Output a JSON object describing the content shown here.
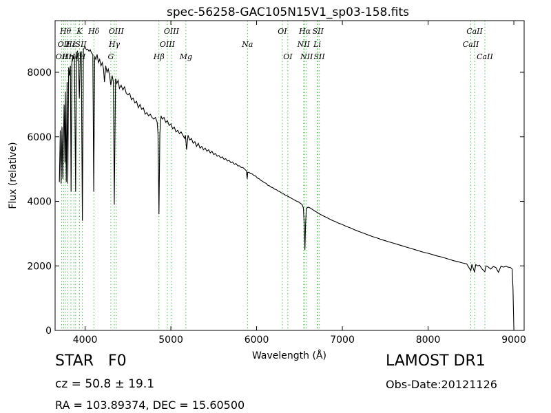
{
  "chart_data": {
    "type": "line",
    "title": "spec-56258-GAC105N15V1_sp03-158.fits",
    "xlabel": "Wavelength (Å)",
    "ylabel": "Flux (relative)",
    "xlim": [
      3650,
      9120
    ],
    "ylim": [
      0,
      9600
    ],
    "xticks": [
      4000,
      5000,
      6000,
      7000,
      8000,
      9000
    ],
    "yticks": [
      0,
      2000,
      4000,
      6000,
      8000
    ],
    "grid": false,
    "series": [
      {
        "color": "#000000",
        "points": [
          [
            3700,
            4600
          ],
          [
            3710,
            6200
          ],
          [
            3720,
            4550
          ],
          [
            3730,
            6300
          ],
          [
            3740,
            4700
          ],
          [
            3755,
            7000
          ],
          [
            3765,
            5200
          ],
          [
            3770,
            7400
          ],
          [
            3780,
            4600
          ],
          [
            3790,
            7700
          ],
          [
            3798,
            4550
          ],
          [
            3808,
            8150
          ],
          [
            3818,
            7900
          ],
          [
            3828,
            8200
          ],
          [
            3836,
            4300
          ],
          [
            3846,
            8300
          ],
          [
            3856,
            8400
          ],
          [
            3866,
            8500
          ],
          [
            3876,
            8450
          ],
          [
            3889,
            4300
          ],
          [
            3900,
            8600
          ],
          [
            3910,
            8650
          ],
          [
            3920,
            8550
          ],
          [
            3933,
            7200
          ],
          [
            3945,
            8600
          ],
          [
            3955,
            8650
          ],
          [
            3968,
            3400
          ],
          [
            3980,
            8700
          ],
          [
            3990,
            8750
          ],
          [
            4000,
            8780
          ],
          [
            4015,
            8700
          ],
          [
            4030,
            8720
          ],
          [
            4045,
            8650
          ],
          [
            4060,
            8700
          ],
          [
            4075,
            8600
          ],
          [
            4090,
            8550
          ],
          [
            4101,
            4300
          ],
          [
            4112,
            8500
          ],
          [
            4125,
            8400
          ],
          [
            4140,
            8550
          ],
          [
            4155,
            8300
          ],
          [
            4170,
            8400
          ],
          [
            4185,
            8200
          ],
          [
            4200,
            8300
          ],
          [
            4215,
            8100
          ],
          [
            4226,
            7700
          ],
          [
            4240,
            8200
          ],
          [
            4255,
            8000
          ],
          [
            4270,
            8100
          ],
          [
            4285,
            7900
          ],
          [
            4300,
            7600
          ],
          [
            4315,
            7900
          ],
          [
            4330,
            7700
          ],
          [
            4340,
            3900
          ],
          [
            4355,
            7800
          ],
          [
            4370,
            7650
          ],
          [
            4385,
            7750
          ],
          [
            4400,
            7500
          ],
          [
            4420,
            7600
          ],
          [
            4440,
            7450
          ],
          [
            4460,
            7550
          ],
          [
            4480,
            7350
          ],
          [
            4500,
            7300
          ],
          [
            4520,
            7350
          ],
          [
            4540,
            7150
          ],
          [
            4560,
            7200
          ],
          [
            4580,
            7050
          ],
          [
            4600,
            7100
          ],
          [
            4620,
            6900
          ],
          [
            4640,
            7000
          ],
          [
            4660,
            6850
          ],
          [
            4680,
            6900
          ],
          [
            4700,
            6700
          ],
          [
            4720,
            6750
          ],
          [
            4740,
            6650
          ],
          [
            4760,
            6700
          ],
          [
            4780,
            6600
          ],
          [
            4800,
            6550
          ],
          [
            4820,
            6600
          ],
          [
            4840,
            6450
          ],
          [
            4850,
            6100
          ],
          [
            4861,
            3600
          ],
          [
            4872,
            6100
          ],
          [
            4885,
            6650
          ],
          [
            4900,
            6550
          ],
          [
            4920,
            6600
          ],
          [
            4940,
            6450
          ],
          [
            4960,
            6500
          ],
          [
            4980,
            6350
          ],
          [
            5000,
            6400
          ],
          [
            5020,
            6250
          ],
          [
            5040,
            6300
          ],
          [
            5060,
            6150
          ],
          [
            5080,
            6200
          ],
          [
            5100,
            6100
          ],
          [
            5120,
            6150
          ],
          [
            5140,
            6050
          ],
          [
            5160,
            5950
          ],
          [
            5170,
            6050
          ],
          [
            5183,
            5600
          ],
          [
            5200,
            6050
          ],
          [
            5220,
            5900
          ],
          [
            5240,
            5950
          ],
          [
            5260,
            5800
          ],
          [
            5280,
            5850
          ],
          [
            5300,
            5700
          ],
          [
            5320,
            5800
          ],
          [
            5340,
            5650
          ],
          [
            5360,
            5700
          ],
          [
            5380,
            5600
          ],
          [
            5400,
            5650
          ],
          [
            5420,
            5550
          ],
          [
            5440,
            5600
          ],
          [
            5460,
            5500
          ],
          [
            5480,
            5550
          ],
          [
            5500,
            5450
          ],
          [
            5520,
            5480
          ],
          [
            5540,
            5400
          ],
          [
            5560,
            5420
          ],
          [
            5580,
            5350
          ],
          [
            5600,
            5380
          ],
          [
            5620,
            5300
          ],
          [
            5640,
            5320
          ],
          [
            5660,
            5250
          ],
          [
            5680,
            5270
          ],
          [
            5700,
            5200
          ],
          [
            5720,
            5220
          ],
          [
            5740,
            5150
          ],
          [
            5760,
            5170
          ],
          [
            5780,
            5100
          ],
          [
            5800,
            5100
          ],
          [
            5820,
            5050
          ],
          [
            5840,
            5050
          ],
          [
            5860,
            5000
          ],
          [
            5880,
            4950
          ],
          [
            5890,
            4700
          ],
          [
            5896,
            4900
          ],
          [
            5910,
            4900
          ],
          [
            5930,
            4860
          ],
          [
            5950,
            4850
          ],
          [
            5970,
            4800
          ],
          [
            5990,
            4780
          ],
          [
            6010,
            4720
          ],
          [
            6030,
            4700
          ],
          [
            6050,
            4650
          ],
          [
            6070,
            4620
          ],
          [
            6090,
            4580
          ],
          [
            6110,
            4560
          ],
          [
            6130,
            4500
          ],
          [
            6150,
            4480
          ],
          [
            6170,
            4440
          ],
          [
            6190,
            4420
          ],
          [
            6210,
            4380
          ],
          [
            6230,
            4360
          ],
          [
            6250,
            4320
          ],
          [
            6270,
            4300
          ],
          [
            6290,
            4260
          ],
          [
            6310,
            4240
          ],
          [
            6330,
            4200
          ],
          [
            6350,
            4180
          ],
          [
            6370,
            4150
          ],
          [
            6390,
            4120
          ],
          [
            6410,
            4090
          ],
          [
            6430,
            4060
          ],
          [
            6450,
            4030
          ],
          [
            6470,
            4000
          ],
          [
            6490,
            3980
          ],
          [
            6510,
            3940
          ],
          [
            6530,
            3900
          ],
          [
            6545,
            3800
          ],
          [
            6555,
            3300
          ],
          [
            6563,
            2500
          ],
          [
            6571,
            3300
          ],
          [
            6580,
            3780
          ],
          [
            6600,
            3820
          ],
          [
            6620,
            3800
          ],
          [
            6650,
            3750
          ],
          [
            6680,
            3700
          ],
          [
            6710,
            3650
          ],
          [
            6740,
            3600
          ],
          [
            6770,
            3560
          ],
          [
            6800,
            3520
          ],
          [
            6830,
            3480
          ],
          [
            6860,
            3440
          ],
          [
            6890,
            3400
          ],
          [
            6920,
            3370
          ],
          [
            6950,
            3330
          ],
          [
            6980,
            3300
          ],
          [
            7000,
            3280
          ],
          [
            7050,
            3220
          ],
          [
            7100,
            3170
          ],
          [
            7150,
            3110
          ],
          [
            7200,
            3060
          ],
          [
            7250,
            3010
          ],
          [
            7300,
            2960
          ],
          [
            7350,
            2910
          ],
          [
            7400,
            2870
          ],
          [
            7450,
            2820
          ],
          [
            7500,
            2780
          ],
          [
            7550,
            2740
          ],
          [
            7600,
            2700
          ],
          [
            7650,
            2660
          ],
          [
            7700,
            2620
          ],
          [
            7750,
            2580
          ],
          [
            7800,
            2540
          ],
          [
            7850,
            2500
          ],
          [
            7900,
            2460
          ],
          [
            7950,
            2420
          ],
          [
            8000,
            2390
          ],
          [
            8050,
            2350
          ],
          [
            8100,
            2310
          ],
          [
            8150,
            2280
          ],
          [
            8200,
            2240
          ],
          [
            8250,
            2200
          ],
          [
            8300,
            2160
          ],
          [
            8350,
            2130
          ],
          [
            8400,
            2090
          ],
          [
            8450,
            2060
          ],
          [
            8498,
            1850
          ],
          [
            8510,
            2050
          ],
          [
            8542,
            1800
          ],
          [
            8555,
            2040
          ],
          [
            8580,
            2000
          ],
          [
            8600,
            2020
          ],
          [
            8630,
            1900
          ],
          [
            8662,
            1820
          ],
          [
            8675,
            2000
          ],
          [
            8700,
            1970
          ],
          [
            8730,
            1900
          ],
          [
            8760,
            1980
          ],
          [
            8790,
            1950
          ],
          [
            8820,
            1800
          ],
          [
            8850,
            1990
          ],
          [
            8880,
            1960
          ],
          [
            8910,
            1990
          ],
          [
            8930,
            1960
          ],
          [
            8960,
            1950
          ],
          [
            8980,
            1900
          ],
          [
            8990,
            1300
          ],
          [
            9000,
            0
          ]
        ]
      }
    ],
    "lines": [
      {
        "wavelength": 3727,
        "label": "OII",
        "row": 2
      },
      {
        "wavelength": 3750,
        "label": "OII",
        "row": 1
      },
      {
        "wavelength": 3771,
        "label": "Hθ",
        "row": 0
      },
      {
        "wavelength": 3798,
        "label": "Hη",
        "row": 2
      },
      {
        "wavelength": 3835,
        "label": "Hε",
        "row": 1
      },
      {
        "wavelength": 3869,
        "label": "Hζ",
        "row": 2
      },
      {
        "wavelength": 3889,
        "label": "H",
        "row": 2
      },
      {
        "wavelength": 3934,
        "label": "K",
        "row": 0
      },
      {
        "wavelength": 3934,
        "label": "ISII",
        "row": 1
      },
      {
        "wavelength": 3968,
        "label": "H",
        "row": 2
      },
      {
        "wavelength": 4102,
        "label": "Hδ",
        "row": 0
      },
      {
        "wavelength": 4300,
        "label": "G",
        "row": 2
      },
      {
        "wavelength": 4341,
        "label": "Hγ",
        "row": 1
      },
      {
        "wavelength": 4363,
        "label": "OIII",
        "row": 0
      },
      {
        "wavelength": 4861,
        "label": "Hβ",
        "row": 2
      },
      {
        "wavelength": 4959,
        "label": "OIII",
        "row": 1
      },
      {
        "wavelength": 5007,
        "label": "OIII",
        "row": 0
      },
      {
        "wavelength": 5175,
        "label": "Mg",
        "row": 2
      },
      {
        "wavelength": 5894,
        "label": "Na",
        "row": 1
      },
      {
        "wavelength": 6300,
        "label": "OI",
        "row": 0
      },
      {
        "wavelength": 6364,
        "label": "OI",
        "row": 2
      },
      {
        "wavelength": 6548,
        "label": "NII",
        "row": 1
      },
      {
        "wavelength": 6563,
        "label": "Hα",
        "row": 0
      },
      {
        "wavelength": 6583,
        "label": "NII",
        "row": 2
      },
      {
        "wavelength": 6707,
        "label": "Li",
        "row": 1
      },
      {
        "wavelength": 6716,
        "label": "SII",
        "row": 0
      },
      {
        "wavelength": 6731,
        "label": "SII",
        "row": 2
      },
      {
        "wavelength": 8498,
        "label": "CaII",
        "row": 1
      },
      {
        "wavelength": 8542,
        "label": "CaII",
        "row": 0
      },
      {
        "wavelength": 8662,
        "label": "CaII",
        "row": 2
      }
    ],
    "line_color": "#4fbf4f"
  },
  "info": {
    "object_class": "STAR   F0",
    "survey": "LAMOST DR1",
    "cz": "cz = 50.8 ± 19.1",
    "obs_date": "Obs-Date:20121126",
    "radec": "RA = 103.89374, DEC = 15.60500"
  }
}
